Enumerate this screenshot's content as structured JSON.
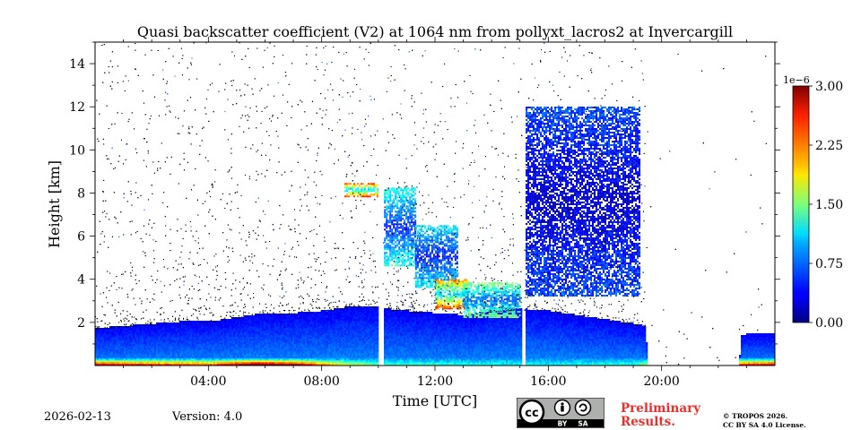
{
  "chart_data": {
    "type": "heatmap",
    "title": "Quasi backscatter coefficient (V2) at 1064 nm from pollyxt_lacros2 at Invercargill",
    "xlabel": "Time [UTC]",
    "ylabel": "Height [km]",
    "xlim_hours": [
      0,
      24
    ],
    "ylim_km": [
      0,
      15
    ],
    "x_ticks": [
      {
        "hour": 4,
        "label": "04:00"
      },
      {
        "hour": 8,
        "label": "08:00"
      },
      {
        "hour": 12,
        "label": "12:00"
      },
      {
        "hour": 16,
        "label": "16:00"
      },
      {
        "hour": 20,
        "label": "20:00"
      }
    ],
    "y_ticks": [
      {
        "value": 2,
        "label": "2"
      },
      {
        "value": 4,
        "label": "4"
      },
      {
        "value": 6,
        "label": "6"
      },
      {
        "value": 8,
        "label": "8"
      },
      {
        "value": 10,
        "label": "10"
      },
      {
        "value": 12,
        "label": "12"
      },
      {
        "value": 14,
        "label": "14"
      }
    ],
    "colorbar": {
      "offset_label": "1e−6",
      "range": [
        0.0,
        3.0
      ],
      "ticks": [
        {
          "value": 0.0,
          "label": "0.00"
        },
        {
          "value": 0.75,
          "label": "0.75"
        },
        {
          "value": 1.5,
          "label": "1.50"
        },
        {
          "value": 2.25,
          "label": "2.25"
        },
        {
          "value": 3.0,
          "label": "3.00"
        }
      ],
      "colormap": "jet"
    },
    "data_gaps_hours": [
      [
        10.0,
        10.15
      ],
      [
        15.05,
        15.15
      ]
    ],
    "boundary_layer_top_km": [
      [
        0,
        1.7
      ],
      [
        1,
        1.8
      ],
      [
        2,
        1.9
      ],
      [
        3,
        2.0
      ],
      [
        4,
        2.0
      ],
      [
        5,
        2.2
      ],
      [
        6,
        2.4
      ],
      [
        7,
        2.4
      ],
      [
        8,
        2.5
      ],
      [
        9,
        2.7
      ],
      [
        10,
        2.7
      ],
      [
        10.2,
        2.6
      ],
      [
        11,
        2.5
      ],
      [
        12,
        2.4
      ],
      [
        13,
        2.3
      ],
      [
        14,
        2.5
      ],
      [
        15,
        2.6
      ],
      [
        16,
        2.5
      ],
      [
        17,
        2.3
      ],
      [
        18,
        2.1
      ],
      [
        19,
        1.9
      ],
      [
        19.4,
        1.8
      ],
      [
        19.5,
        0.0
      ],
      [
        22.7,
        0.0
      ],
      [
        22.8,
        1.4
      ],
      [
        24,
        1.5
      ]
    ],
    "cloud_layers": [
      {
        "t0": 8.8,
        "t1": 10.0,
        "h0": 7.8,
        "h1": 8.4,
        "value": 2.0
      },
      {
        "t0": 10.2,
        "t1": 11.3,
        "h0": 4.6,
        "h1": 8.2,
        "value": 1.0
      },
      {
        "t0": 11.3,
        "t1": 12.8,
        "h0": 3.6,
        "h1": 6.5,
        "value": 0.9
      },
      {
        "t0": 12.0,
        "t1": 13.2,
        "h0": 2.6,
        "h1": 4.0,
        "value": 2.0
      },
      {
        "t0": 13.0,
        "t1": 15.0,
        "h0": 2.2,
        "h1": 3.8,
        "value": 1.3
      },
      {
        "t0": 15.2,
        "t1": 19.2,
        "h0": 3.2,
        "h1": 12.0,
        "value": 0.5
      }
    ],
    "surface_aerosol_max": [
      [
        0,
        2.0
      ],
      [
        2,
        1.8
      ],
      [
        4,
        1.6
      ],
      [
        5.5,
        2.4
      ],
      [
        7,
        2.2
      ],
      [
        8.5,
        1.2
      ],
      [
        10,
        0.6
      ],
      [
        12,
        0.5
      ],
      [
        16,
        0.4
      ],
      [
        19,
        0.5
      ],
      [
        20,
        1.5
      ],
      [
        23,
        1.8
      ],
      [
        24,
        2.0
      ]
    ],
    "noise_top_km": 15.0
  },
  "footer": {
    "date": "2026-02-13",
    "version": "Version: 4.0",
    "preliminary_line1": "Preliminary",
    "preliminary_line2": "Results.",
    "copyright_line1": "© TROPOS 2026.",
    "copyright_line2": "CC BY SA 4.0 License.",
    "cc_text": "cc",
    "by_text": "BY",
    "sa_text": "SA"
  },
  "colors": {
    "prelim": "#e8312c",
    "badge_bg": "#aeb0ae",
    "badge_dark": "#000000"
  }
}
